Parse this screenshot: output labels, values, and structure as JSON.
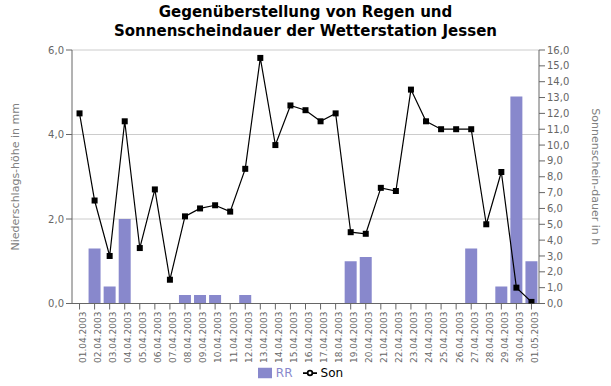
{
  "chart_data": {
    "type": "bar",
    "title": "Gegenüberstellung von Regen und\nSonnenscheindauer der Wetterstation Jessen",
    "categories": [
      "01.04.2003",
      "02.04.2003",
      "03.04.2003",
      "04.04.2003",
      "05.04.2003",
      "06.04.2003",
      "07.04.2003",
      "08.04.2003",
      "09.04.2003",
      "10.04.2003",
      "11.04.2003",
      "12.04.2003",
      "13.04.2003",
      "14.04.2003",
      "15.04.2003",
      "16.04.2003",
      "17.04.2003",
      "18.04.2003",
      "19.04.2003",
      "20.04.2003",
      "21.04.2003",
      "22.04.2003",
      "23.04.2003",
      "24.04.2003",
      "25.04.2003",
      "26.04.2003",
      "27.04.2003",
      "28.04.2003",
      "29.04.2003",
      "30.04.2003",
      "01.05.2003"
    ],
    "series": [
      {
        "name": "RR",
        "type": "bar",
        "color": "#8888CC",
        "values": [
          0.0,
          1.3,
          0.4,
          2.0,
          0.0,
          0.0,
          0.0,
          0.2,
          0.2,
          0.2,
          0.0,
          0.2,
          0.0,
          0.0,
          0.0,
          0.0,
          0.0,
          0.0,
          1.0,
          1.1,
          0.0,
          0.0,
          0.0,
          0.0,
          0.0,
          0.0,
          1.3,
          0.0,
          0.4,
          4.9,
          1.0
        ]
      },
      {
        "name": "Son",
        "type": "line",
        "axis": "y2",
        "color": "black",
        "marker": "square",
        "values": [
          12.0,
          6.5,
          3.0,
          11.5,
          3.5,
          7.2,
          1.5,
          5.5,
          6.0,
          6.2,
          5.8,
          8.5,
          15.5,
          10.0,
          12.5,
          12.2,
          11.5,
          12.0,
          4.5,
          4.4,
          7.3,
          7.1,
          13.5,
          11.5,
          11.0,
          11.0,
          11.0,
          5.0,
          8.3,
          1.0,
          0.1
        ]
      }
    ],
    "y_label": "Niederschlags-höhe in mm",
    "y2_label": "Sonnenschein-dauer in h",
    "ylim": [
      0,
      6
    ],
    "yticks": [
      {
        "value": 0,
        "label": "0,0"
      },
      {
        "value": 2,
        "label": "2,0"
      },
      {
        "value": 4,
        "label": "4,0"
      },
      {
        "value": 6,
        "label": "6,0"
      }
    ],
    "y2lim": [
      0,
      16
    ],
    "y2ticks": [
      {
        "value": 0,
        "label": "0,0"
      },
      {
        "value": 1,
        "label": "1,0"
      },
      {
        "value": 2,
        "label": "2,0"
      },
      {
        "value": 3,
        "label": "3,0"
      },
      {
        "value": 4,
        "label": "4,0"
      },
      {
        "value": 5,
        "label": "5,0"
      },
      {
        "value": 6,
        "label": "6,0"
      },
      {
        "value": 7,
        "label": "7,0"
      },
      {
        "value": 8,
        "label": "8,0"
      },
      {
        "value": 9,
        "label": "9,0"
      },
      {
        "value": 10,
        "label": "10,0"
      },
      {
        "value": 11,
        "label": "11,0"
      },
      {
        "value": 12,
        "label": "12,0"
      },
      {
        "value": 13,
        "label": "13,0"
      },
      {
        "value": 14,
        "label": "14,0"
      },
      {
        "value": 15,
        "label": "15,0"
      },
      {
        "value": 16,
        "label": "16,0"
      }
    ],
    "grid": true,
    "legend": "bottom"
  }
}
